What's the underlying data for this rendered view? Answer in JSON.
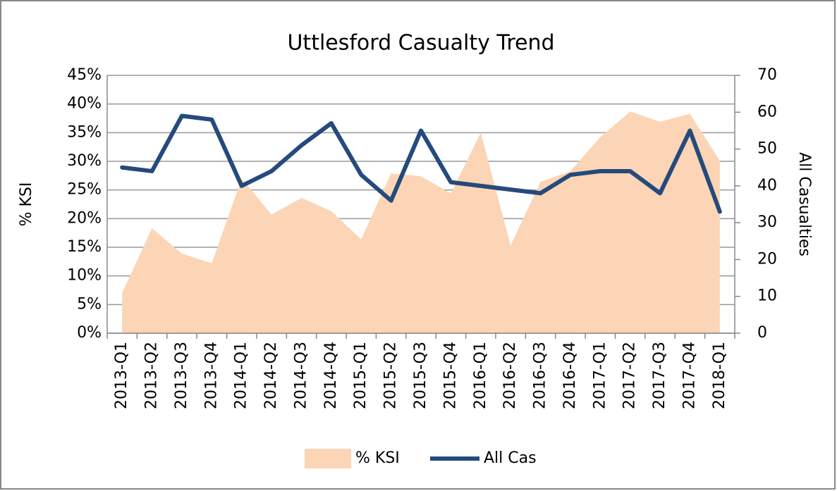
{
  "chart_data": {
    "type": "area_line",
    "title": "Uttlesford Casualty Trend",
    "ylabel": "% KSI",
    "y2label": "All Casualties",
    "categories": [
      "2013-Q1",
      "2013-Q2",
      "2013-Q3",
      "2013-Q4",
      "2014-Q1",
      "2014-Q2",
      "2014-Q3",
      "2014-Q4",
      "2015-Q1",
      "2015-Q2",
      "2015-Q3",
      "2015-Q4",
      "2016-Q1",
      "2016-Q2",
      "2016-Q3",
      "2016-Q4",
      "2017-Q1",
      "2017-Q2",
      "2017-Q3",
      "2017-Q4",
      "2018-Q1"
    ],
    "series": [
      {
        "name": "% KSI",
        "type": "area",
        "color": "#fbd5b5",
        "axis": "y",
        "values": [
          7,
          18.3,
          13.9,
          12.2,
          27,
          20.7,
          23.6,
          21.3,
          16.4,
          27.9,
          27.4,
          24.4,
          35,
          15.3,
          26.4,
          28.3,
          34.2,
          38.7,
          36.9,
          38.3,
          30.1
        ]
      },
      {
        "name": "All Cas",
        "type": "line",
        "color": "#254a7c",
        "axis": "y2",
        "values": [
          45,
          44,
          59,
          58,
          40,
          44,
          51,
          57,
          43,
          36,
          55,
          41,
          40,
          39,
          38,
          43,
          44,
          44,
          38,
          55,
          33
        ]
      }
    ],
    "ylim": [
      0,
      45
    ],
    "yticks": [
      {
        "value": 0,
        "label": "0%"
      },
      {
        "value": 5,
        "label": "5%"
      },
      {
        "value": 10,
        "label": "10%"
      },
      {
        "value": 15,
        "label": "15%"
      },
      {
        "value": 20,
        "label": "20%"
      },
      {
        "value": 25,
        "label": "25%"
      },
      {
        "value": 30,
        "label": "30%"
      },
      {
        "value": 35,
        "label": "35%"
      },
      {
        "value": 40,
        "label": "40%"
      },
      {
        "value": 45,
        "label": "45%"
      }
    ],
    "y2lim": [
      0,
      70
    ],
    "y2ticks": [
      0,
      10,
      20,
      30,
      40,
      50,
      60,
      70
    ],
    "grid": true,
    "legend": "bottom"
  }
}
